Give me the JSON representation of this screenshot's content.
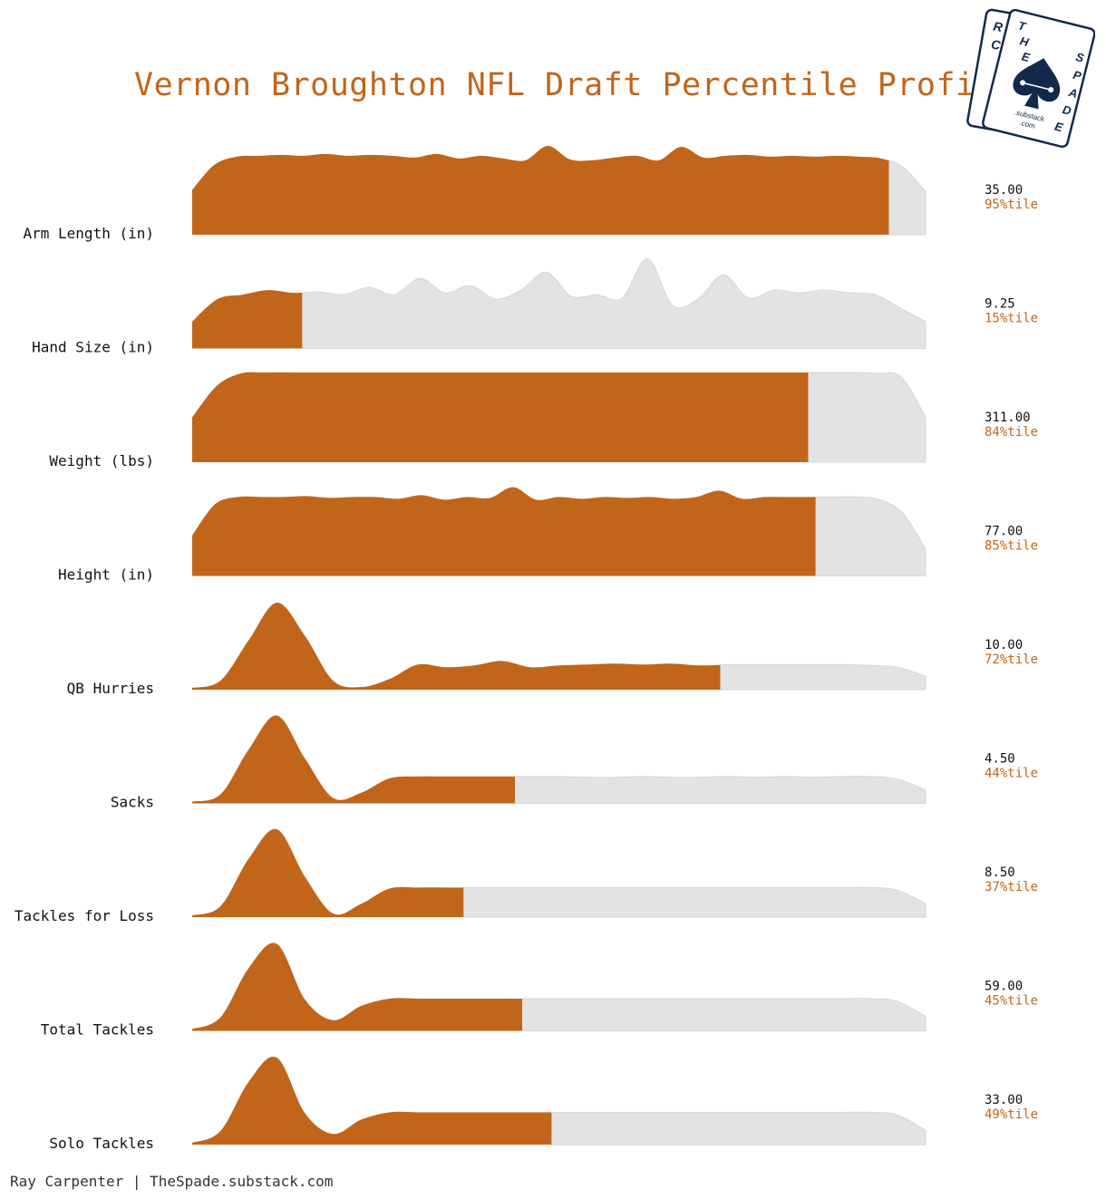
{
  "title": "Vernon Broughton NFL Draft Percentile Profile",
  "footer": "Ray Carpenter | TheSpade.substack.com",
  "logo": {
    "front_letters": [
      "T",
      "H",
      "E",
      "S",
      "P",
      "A",
      "D",
      "E"
    ],
    "back_letters": [
      "R",
      "C"
    ],
    "center_top": ".substack",
    "center_bottom": ".com"
  },
  "colors": {
    "accent": "#c1651a",
    "remainder": "#e3e3e3",
    "title": "#c1651a",
    "navy": "#13294b"
  },
  "chart_data": {
    "type": "ridgeline",
    "rows": [
      {
        "label": "Arm Length (in)",
        "value": "35.00",
        "percentile": 95,
        "percentile_label": "95%tile",
        "density": [
          0.5,
          0.78,
          0.87,
          0.88,
          0.89,
          0.88,
          0.9,
          0.88,
          0.89,
          0.88,
          0.86,
          0.9,
          0.85,
          0.88,
          0.85,
          0.83,
          0.99,
          0.84,
          0.83,
          0.86,
          0.88,
          0.83,
          0.98,
          0.86,
          0.88,
          0.89,
          0.87,
          0.88,
          0.87,
          0.88,
          0.87,
          0.85,
          0.75,
          0.48
        ]
      },
      {
        "label": "Hand Size (in)",
        "value": "9.25",
        "percentile": 15,
        "percentile_label": "15%tile",
        "density": [
          0.3,
          0.55,
          0.6,
          0.65,
          0.62,
          0.63,
          0.6,
          0.68,
          0.6,
          0.78,
          0.62,
          0.7,
          0.55,
          0.65,
          0.85,
          0.58,
          0.6,
          0.56,
          1.0,
          0.48,
          0.55,
          0.82,
          0.56,
          0.65,
          0.62,
          0.65,
          0.62,
          0.6,
          0.45,
          0.3
        ]
      },
      {
        "label": "Weight (lbs)",
        "value": "311.00",
        "percentile": 84,
        "percentile_label": "84%tile",
        "density": [
          0.5,
          0.85,
          0.99,
          1.0,
          1.0,
          1.0,
          1.0,
          1.0,
          1.0,
          1.0,
          1.0,
          1.0,
          1.0,
          1.0,
          1.0,
          1.0,
          1.0,
          1.0,
          1.0,
          1.0,
          1.0,
          1.0,
          1.0,
          1.0,
          1.0,
          1.0,
          1.0,
          1.0,
          0.99,
          0.95,
          0.5
        ]
      },
      {
        "label": "Height (in)",
        "value": "77.00",
        "percentile": 85,
        "percentile_label": "85%tile",
        "density": [
          0.45,
          0.8,
          0.88,
          0.88,
          0.88,
          0.89,
          0.87,
          0.88,
          0.88,
          0.86,
          0.9,
          0.85,
          0.88,
          0.87,
          0.99,
          0.85,
          0.88,
          0.86,
          0.88,
          0.87,
          0.88,
          0.86,
          0.88,
          0.95,
          0.86,
          0.88,
          0.88,
          0.88,
          0.88,
          0.88,
          0.85,
          0.7,
          0.3
        ]
      },
      {
        "label": "QB Hurries",
        "value": "10.00",
        "percentile": 72,
        "percentile_label": "72%tile",
        "density": [
          0.02,
          0.1,
          0.55,
          0.97,
          0.6,
          0.1,
          0.03,
          0.12,
          0.28,
          0.25,
          0.27,
          0.32,
          0.25,
          0.27,
          0.28,
          0.29,
          0.28,
          0.29,
          0.27,
          0.28,
          0.28,
          0.28,
          0.28,
          0.28,
          0.27,
          0.25,
          0.15
        ]
      },
      {
        "label": "Sacks",
        "value": "4.50",
        "percentile": 44,
        "percentile_label": "44%tile",
        "density": [
          0.02,
          0.1,
          0.6,
          0.98,
          0.5,
          0.06,
          0.12,
          0.28,
          0.3,
          0.3,
          0.3,
          0.3,
          0.3,
          0.3,
          0.29,
          0.29,
          0.3,
          0.29,
          0.29,
          0.3,
          0.29,
          0.3,
          0.29,
          0.3,
          0.3,
          0.27,
          0.15
        ]
      },
      {
        "label": "Tackles for Loss",
        "value": "8.50",
        "percentile": 37,
        "percentile_label": "37%tile",
        "density": [
          0.02,
          0.12,
          0.65,
          0.98,
          0.45,
          0.04,
          0.15,
          0.32,
          0.33,
          0.33,
          0.33,
          0.33,
          0.33,
          0.33,
          0.33,
          0.33,
          0.33,
          0.33,
          0.33,
          0.33,
          0.33,
          0.33,
          0.33,
          0.33,
          0.33,
          0.3,
          0.15
        ]
      },
      {
        "label": "Total Tackles",
        "value": "59.00",
        "percentile": 45,
        "percentile_label": "45%tile",
        "density": [
          0.02,
          0.15,
          0.7,
          0.97,
          0.35,
          0.12,
          0.28,
          0.36,
          0.36,
          0.36,
          0.36,
          0.36,
          0.36,
          0.36,
          0.36,
          0.36,
          0.36,
          0.36,
          0.36,
          0.36,
          0.36,
          0.36,
          0.36,
          0.36,
          0.36,
          0.33,
          0.16
        ]
      },
      {
        "label": "Solo Tackles",
        "value": "33.00",
        "percentile": 49,
        "percentile_label": "49%tile",
        "density": [
          0.02,
          0.15,
          0.7,
          0.97,
          0.35,
          0.12,
          0.28,
          0.36,
          0.36,
          0.36,
          0.36,
          0.36,
          0.36,
          0.36,
          0.36,
          0.36,
          0.36,
          0.36,
          0.36,
          0.36,
          0.36,
          0.36,
          0.36,
          0.36,
          0.36,
          0.33,
          0.16
        ]
      }
    ]
  }
}
